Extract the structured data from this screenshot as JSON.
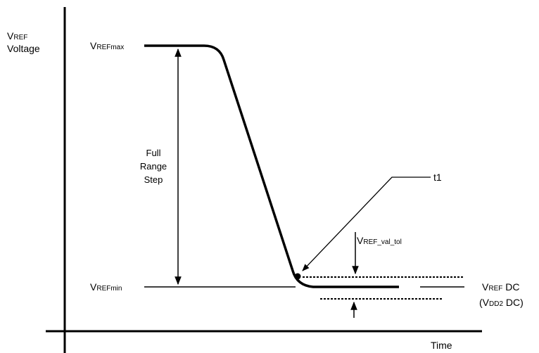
{
  "y_axis_label": {
    "main": "V",
    "sub": "REF",
    "line2": "Voltage"
  },
  "vref_max": {
    "main": "V",
    "sub": "REFmax"
  },
  "vref_min": {
    "main": "V",
    "sub": "REFmin"
  },
  "step_label": [
    "Full",
    "Range",
    "Step"
  ],
  "t1": "t1",
  "tolerance": {
    "main": "V",
    "sub": "REF_val_tol"
  },
  "vref_dc": {
    "main": "V",
    "sub": "REF",
    "tail": " DC"
  },
  "vdd2_dc": {
    "open": "(V",
    "sub": "DD2",
    "tail": " DC)"
  },
  "x_axis_label": "Time"
}
